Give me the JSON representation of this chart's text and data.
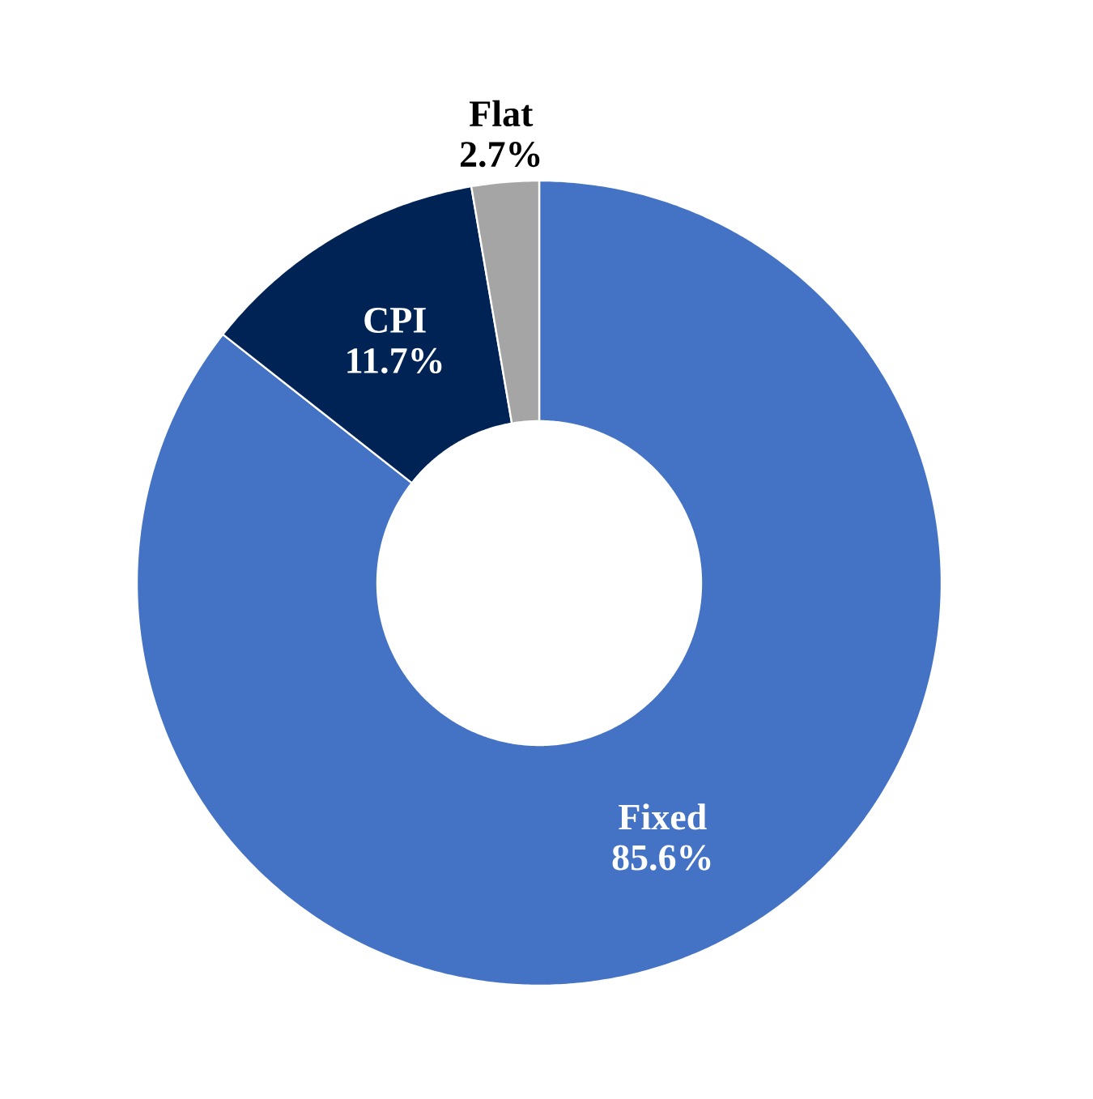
{
  "chart_data": {
    "type": "donut",
    "categories": [
      "Fixed",
      "CPI",
      "Flat"
    ],
    "values": [
      85.6,
      11.7,
      2.7
    ],
    "colors": [
      "#4472c4",
      "#002355",
      "#a5a5a5"
    ],
    "value_labels": [
      "85.6%",
      "11.7%",
      "2.7%"
    ]
  }
}
